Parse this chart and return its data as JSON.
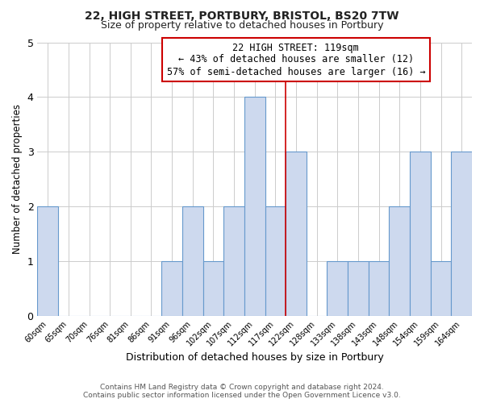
{
  "title": "22, HIGH STREET, PORTBURY, BRISTOL, BS20 7TW",
  "subtitle": "Size of property relative to detached houses in Portbury",
  "xlabel": "Distribution of detached houses by size in Portbury",
  "ylabel": "Number of detached properties",
  "bin_labels": [
    "60sqm",
    "65sqm",
    "70sqm",
    "76sqm",
    "81sqm",
    "86sqm",
    "91sqm",
    "96sqm",
    "102sqm",
    "107sqm",
    "112sqm",
    "117sqm",
    "122sqm",
    "128sqm",
    "133sqm",
    "138sqm",
    "143sqm",
    "148sqm",
    "154sqm",
    "159sqm",
    "164sqm"
  ],
  "bar_heights": [
    2,
    0,
    0,
    0,
    0,
    0,
    1,
    2,
    1,
    2,
    4,
    2,
    3,
    0,
    1,
    1,
    1,
    2,
    3,
    1,
    3
  ],
  "bar_color": "#cdd9ee",
  "bar_edgecolor": "#6699cc",
  "ylim": [
    0,
    5
  ],
  "yticks": [
    0,
    1,
    2,
    3,
    4,
    5
  ],
  "red_line_x": 11.5,
  "annotation_text_line1": "22 HIGH STREET: 119sqm",
  "annotation_text_line2": "← 43% of detached houses are smaller (12)",
  "annotation_text_line3": "57% of semi-detached houses are larger (16) →",
  "annotation_box_color": "#ffffff",
  "annotation_border_color": "#cc0000",
  "footer_line1": "Contains HM Land Registry data © Crown copyright and database right 2024.",
  "footer_line2": "Contains public sector information licensed under the Open Government Licence v3.0.",
  "background_color": "#ffffff",
  "grid_color": "#cccccc",
  "title_fontsize": 10,
  "subtitle_fontsize": 9
}
